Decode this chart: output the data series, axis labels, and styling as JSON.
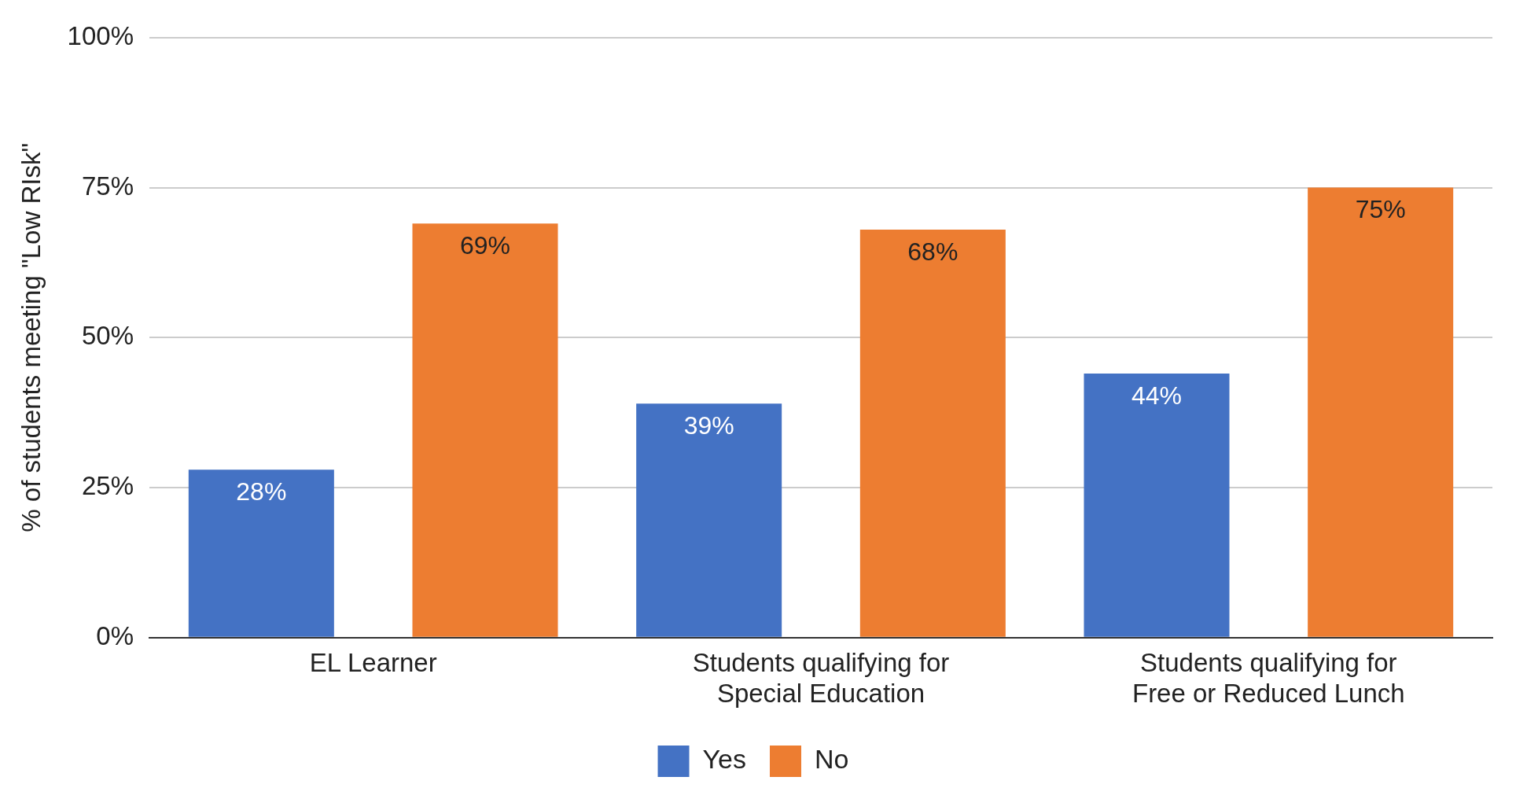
{
  "chart_data": {
    "type": "bar",
    "ylabel": "% of students meeting \"Low RIsk\"",
    "categories": [
      "EL Learner",
      "Students qualifying for Special Education",
      "Students qualifying for Free or Reduced Lunch"
    ],
    "series": [
      {
        "name": "Yes",
        "color": "#4472c4",
        "values": [
          28,
          39,
          44
        ]
      },
      {
        "name": "No",
        "color": "#ed7d31",
        "values": [
          69,
          68,
          75
        ]
      }
    ],
    "ylim": [
      0,
      100
    ],
    "yticks": [
      {
        "value": 0,
        "label": "0%"
      },
      {
        "value": 25,
        "label": "25%"
      },
      {
        "value": 50,
        "label": "50%"
      },
      {
        "value": 75,
        "label": "75%"
      },
      {
        "value": 100,
        "label": "100%"
      }
    ],
    "grid": "y",
    "legend": "bottom",
    "value_labels": [
      [
        "28%",
        "39%",
        "44%"
      ],
      [
        "69%",
        "68%",
        "75%"
      ]
    ]
  }
}
